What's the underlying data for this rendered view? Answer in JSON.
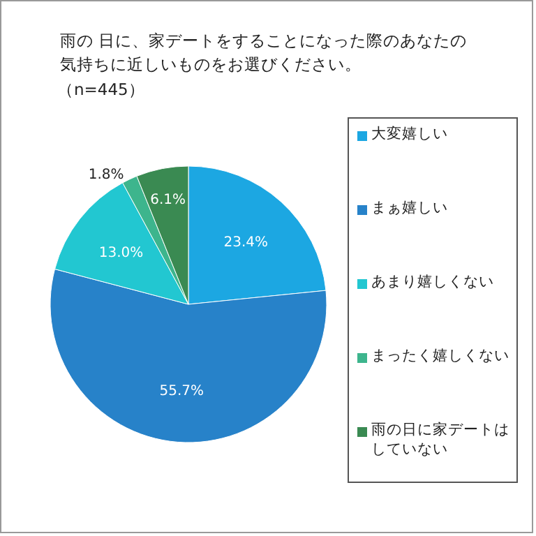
{
  "chart_data": {
    "type": "pie",
    "title": "雨の 日に、家デートをすることになった際のあなたの気持ちに近しいものをお選びください。",
    "subtitle": "（n=445）",
    "categories": [
      "大変嬉しい",
      "まぁ嬉しい",
      "あまり嬉しくない",
      "まったく嬉しくない",
      "雨の日に家デートはしていない"
    ],
    "values": [
      23.4,
      55.7,
      13.0,
      1.8,
      6.1
    ],
    "colors": [
      "#1ca7e2",
      "#2782c9",
      "#22c7d1",
      "#3db58d",
      "#3a8a52"
    ],
    "value_labels": [
      "23.4%",
      "55.7%",
      "13.0%",
      "1.8%",
      "6.1%"
    ],
    "legend": "right"
  }
}
